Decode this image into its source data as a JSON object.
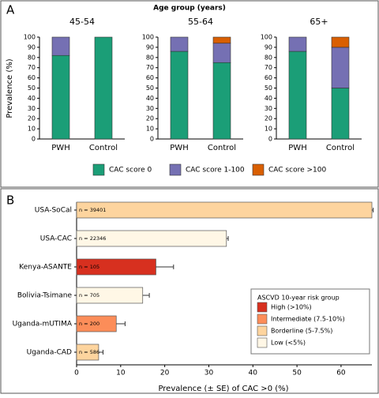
{
  "chart_data": [
    {
      "type": "faceted-stacked-bar",
      "label": "A",
      "title": "Age group (years)",
      "ylabel": "Prevalence (%)",
      "categories": [
        "PWH",
        "Control"
      ],
      "series": [
        {
          "name": "CAC score 0",
          "color": "#1b9e77"
        },
        {
          "name": "CAC score 1-100",
          "color": "#7570b3"
        },
        {
          "name": "CAC score >100",
          "color": "#d95f02"
        }
      ],
      "facets": [
        {
          "title": "45-54",
          "values": [
            [
              82,
              100
            ],
            [
              18,
              0
            ],
            [
              0,
              0
            ]
          ]
        },
        {
          "title": "55-64",
          "values": [
            [
              86,
              75
            ],
            [
              14,
              19
            ],
            [
              0,
              6
            ]
          ]
        },
        {
          "title": "65+",
          "values": [
            [
              86,
              50
            ],
            [
              14,
              40
            ],
            [
              0,
              10
            ]
          ]
        }
      ],
      "ylim": [
        0,
        100
      ],
      "yticks": [
        0,
        10,
        20,
        30,
        40,
        50,
        60,
        70,
        80,
        90,
        100
      ]
    },
    {
      "type": "hbar",
      "label": "B",
      "xlabel": "Prevalence (± SE) of CAC >0 (%)",
      "categories": [
        "USA-SoCal",
        "USA-CAC",
        "Kenya-ASANTE",
        "Bolivia-Tsimane",
        "Uganda-mUTIMA",
        "Uganda-CAD"
      ],
      "values": [
        67,
        34,
        18,
        15,
        9,
        5
      ],
      "errors": [
        0.3,
        0.4,
        4,
        1.5,
        2,
        1
      ],
      "n_labels": [
        "n = 39401",
        "n = 22346",
        "n = 105",
        "n = 705",
        "n = 200",
        "n = 586"
      ],
      "colors": [
        "#fdd49e",
        "#fff7e6",
        "#d7301f",
        "#fff7e6",
        "#fc8d59",
        "#fdd49e"
      ],
      "legend_title": "ASCVD 10-year risk group",
      "legend": [
        {
          "name": "High (>10%)",
          "color": "#d7301f"
        },
        {
          "name": "Intermediate (7.5-10%)",
          "color": "#fc8d59"
        },
        {
          "name": "Borderline (5-7.5%)",
          "color": "#fdd49e"
        },
        {
          "name": "Low (<5%)",
          "color": "#fff7e6"
        }
      ],
      "xlim": [
        0,
        67
      ],
      "xticks": [
        0,
        10,
        20,
        30,
        40,
        50,
        60
      ]
    }
  ]
}
